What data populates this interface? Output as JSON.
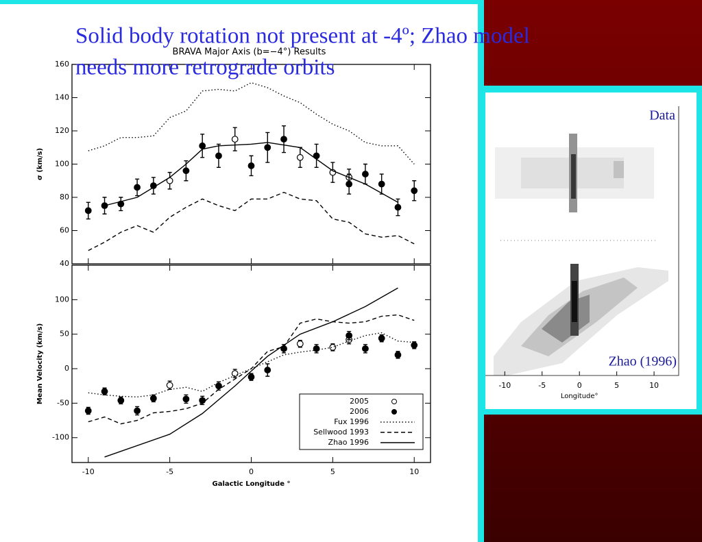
{
  "slide": {
    "title_lines": [
      "Solid body rotation not present at -4º; Zhao model",
      "needs more retrograde orbits"
    ]
  },
  "chart_data": [
    {
      "type": "scatter",
      "title": "BRAVA Major Axis (b=−4°) Results",
      "ylabel": "σ (km/s)",
      "ylim": [
        40,
        160
      ],
      "yticks": [
        40,
        60,
        80,
        100,
        120,
        140,
        160
      ],
      "series": [
        {
          "marker": "open",
          "color": "#000000",
          "x": [
            -5,
            -1,
            3,
            5,
            6
          ],
          "values": [
            90,
            115,
            104,
            95,
            92
          ],
          "errors": [
            5,
            7,
            6,
            6,
            5
          ]
        },
        {
          "marker": "filled",
          "color": "#000000",
          "x": [
            -10,
            -9,
            -8,
            -7,
            -6,
            -4,
            -3,
            -2,
            0,
            1,
            2,
            4,
            6,
            7,
            8,
            9,
            10
          ],
          "values": [
            72,
            75,
            76,
            86,
            87,
            96,
            111,
            105,
            99,
            110,
            115,
            105,
            88,
            94,
            88,
            74,
            84
          ],
          "errors": [
            5,
            5,
            4,
            5,
            5,
            6,
            7,
            7,
            6,
            9,
            8,
            7,
            6,
            6,
            6,
            5,
            6
          ]
        },
        {
          "line": "dotted",
          "color": "#000000",
          "x": [
            -10,
            -9,
            -8,
            -7,
            -6,
            -5,
            -4,
            -3,
            -2,
            -1,
            0,
            1,
            2,
            3,
            4,
            5,
            6,
            7,
            8,
            9,
            10
          ],
          "values": [
            108,
            111,
            116,
            116,
            117,
            128,
            132,
            144,
            145,
            144,
            149,
            146,
            141,
            137,
            130,
            124,
            120,
            113,
            111,
            111,
            100
          ]
        },
        {
          "line": "dashed",
          "color": "#000000",
          "x": [
            -10,
            -9,
            -8,
            -7,
            -6,
            -5,
            -4,
            -3,
            -2,
            -1,
            0,
            1,
            2,
            3,
            4,
            5,
            6,
            7,
            8,
            9,
            10
          ],
          "values": [
            48,
            53,
            59,
            63,
            59,
            68,
            74,
            79,
            75,
            72,
            79,
            79,
            83,
            79,
            78,
            67,
            65,
            58,
            56,
            57,
            52
          ]
        },
        {
          "line": "solid",
          "color": "#000000",
          "x": [
            -9,
            -7,
            -5,
            -4,
            -3,
            -2,
            0,
            1,
            3,
            5,
            7,
            9
          ],
          "values": [
            75,
            80,
            92,
            100,
            109,
            111,
            112,
            113,
            110,
            96,
            88,
            77
          ]
        }
      ]
    },
    {
      "type": "scatter",
      "xlabel": "Galactic Longitude °",
      "ylabel": "Mean Velocity (km/s)",
      "xlim": [
        -11,
        11
      ],
      "xticks": [
        -10,
        -5,
        0,
        5,
        10
      ],
      "ylim": [
        -136,
        150
      ],
      "yticks": [
        -100,
        -50,
        0,
        50,
        100
      ],
      "legend": "lower right",
      "series": [
        {
          "name": "2005",
          "marker": "open",
          "color": "#000000",
          "x": [
            -5,
            -1,
            3,
            5,
            6
          ],
          "values": [
            -24,
            -7,
            36,
            31,
            42
          ],
          "errors": [
            6,
            6,
            5,
            5,
            6
          ]
        },
        {
          "name": "2006",
          "marker": "filled",
          "color": "#000000",
          "x": [
            -10,
            -9,
            -8,
            -7,
            -6,
            -4,
            -3,
            -2,
            0,
            1,
            2,
            4,
            6,
            7,
            8,
            9,
            10
          ],
          "values": [
            -61,
            -33,
            -46,
            -61,
            -43,
            -44,
            -46,
            -25,
            -12,
            -2,
            29,
            29,
            48,
            29,
            44,
            20,
            34
          ],
          "errors": [
            5,
            5,
            5,
            6,
            5,
            6,
            6,
            6,
            5,
            9,
            6,
            6,
            6,
            6,
            5,
            5,
            5
          ]
        },
        {
          "name": "Fux 1996",
          "line": "dotted",
          "color": "#000000",
          "x": [
            -10,
            -9,
            -8,
            -7,
            -6,
            -5,
            -4,
            -3,
            -2,
            -1,
            0,
            1,
            2,
            3,
            4,
            5,
            6,
            7,
            8,
            9,
            10
          ],
          "values": [
            -35,
            -38,
            -40,
            -41,
            -38,
            -30,
            -27,
            -33,
            -20,
            -10,
            0,
            10,
            20,
            24,
            27,
            31,
            40,
            48,
            52,
            40,
            38
          ]
        },
        {
          "name": "Sellwood 1993",
          "line": "dashed",
          "color": "#000000",
          "x": [
            -10,
            -9,
            -8,
            -7,
            -6,
            -5,
            -4,
            -3,
            -2,
            -1,
            0,
            1,
            2,
            3,
            4,
            5,
            6,
            7,
            8,
            9,
            10
          ],
          "values": [
            -77,
            -70,
            -80,
            -75,
            -64,
            -62,
            -58,
            -50,
            -30,
            -15,
            0,
            25,
            32,
            66,
            72,
            68,
            66,
            68,
            76,
            78,
            70
          ]
        },
        {
          "name": "Zhao 1996",
          "line": "solid",
          "color": "#000000",
          "x": [
            -9,
            -5,
            -3,
            -1,
            1,
            3,
            5,
            7,
            9
          ],
          "values": [
            -128,
            -95,
            -65,
            -25,
            18,
            50,
            68,
            90,
            117
          ]
        }
      ]
    }
  ],
  "inset": {
    "top_label": "Data",
    "bottom_label": "Zhao (1996)",
    "xlabel": "Longitude°",
    "xlim": [
      -12.6,
      13.3
    ],
    "xticks": [
      -10,
      -5,
      0,
      5,
      10
    ]
  }
}
